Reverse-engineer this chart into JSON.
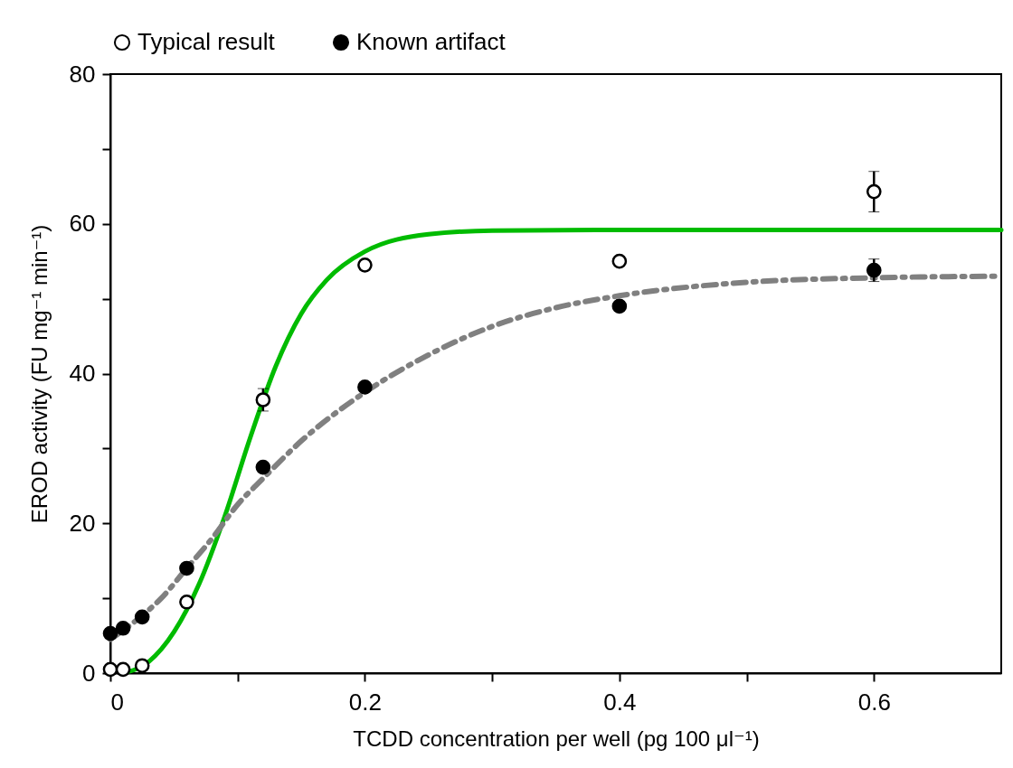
{
  "chart_data": {
    "type": "scatter",
    "xlabel": "TCDD concentration per well (pg 100 μl⁻¹)",
    "ylabel": "EROD activity (FU mg⁻¹ min⁻¹)",
    "xlim": [
      0,
      0.7
    ],
    "xticks": [
      0,
      {
        "value": 0.1,
        "label": null
      },
      0.2,
      {
        "value": 0.3,
        "label": null
      },
      0.4,
      {
        "value": 0.5,
        "label": null
      },
      0.6
    ],
    "ylim": [
      0,
      80
    ],
    "yticks": [
      0,
      {
        "value": 10,
        "label": null
      },
      20,
      {
        "value": 30,
        "label": null
      },
      40,
      {
        "value": 50,
        "label": null
      },
      60,
      {
        "value": 70,
        "label": null
      },
      80
    ],
    "grid": false,
    "legend": "top",
    "marker": "circle",
    "series": [
      {
        "type": "line",
        "color": "#00bb00",
        "line_style": "solid",
        "marker": "none",
        "x": [
          0.01,
          0.03,
          0.05,
          0.07,
          0.09,
          0.11,
          0.13,
          0.15,
          0.17,
          0.2,
          0.25,
          0.3,
          0.4,
          0.5,
          0.6,
          0.7
        ],
        "values": [
          0,
          1.5,
          5.5,
          12,
          21,
          31.5,
          41,
          48,
          52.5,
          56.3,
          58.6,
          59.1,
          59.2,
          59.2,
          59.2,
          59.2
        ]
      },
      {
        "type": "line",
        "color": "#808080",
        "line_style": "dashed",
        "marker": "none",
        "x": [
          0,
          0.02,
          0.04,
          0.06,
          0.08,
          0.1,
          0.12,
          0.15,
          0.2,
          0.25,
          0.3,
          0.35,
          0.4,
          0.5,
          0.6,
          0.7
        ],
        "values": [
          4.5,
          7,
          10,
          14,
          18,
          22.5,
          26,
          31,
          37.5,
          42.5,
          46.3,
          48.8,
          50.4,
          52.2,
          52.8,
          53
        ]
      },
      {
        "name": "Typical result",
        "color": "#ffffff",
        "x": [
          0,
          0.01,
          0.025,
          0.06,
          0.12,
          0.2,
          0.4,
          0.6
        ],
        "values": [
          0.5,
          0.5,
          1,
          9.5,
          36.5,
          54.5,
          55,
          64.3
        ],
        "errors": [
          null,
          null,
          null,
          null,
          1.5,
          null,
          null,
          2.7
        ]
      },
      {
        "name": "Known artifact",
        "color": "#000000",
        "x": [
          0,
          0.01,
          0.025,
          0.06,
          0.12,
          0.2,
          0.4,
          0.6
        ],
        "values": [
          5.3,
          6,
          7.5,
          14,
          27.5,
          38.2,
          49,
          53.8
        ],
        "errors": [
          null,
          null,
          null,
          null,
          null,
          null,
          null,
          1.5
        ]
      }
    ]
  }
}
